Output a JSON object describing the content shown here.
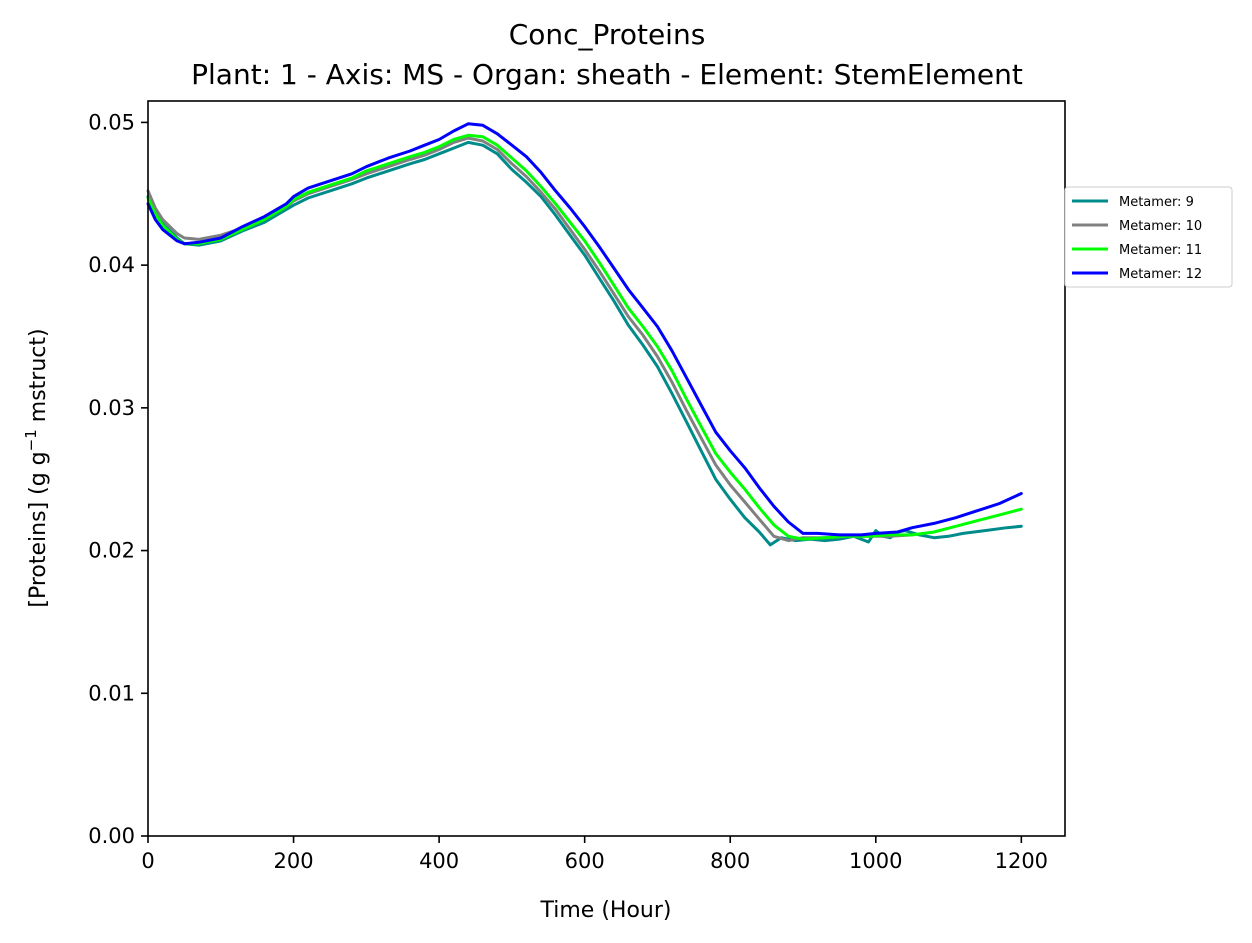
{
  "chart_data": {
    "type": "line",
    "title": "Conc_Proteins",
    "subtitle": "Plant: 1 - Axis: MS - Organ: sheath - Element: StemElement",
    "xlabel": "Time (Hour)",
    "ylabel_main": "[Proteins] (g g",
    "ylabel_sup": "−1",
    "ylabel_tail": " mstruct)",
    "xlim": [
      0,
      1260
    ],
    "ylim": [
      0,
      0.0515
    ],
    "xticks": [
      0,
      200,
      400,
      600,
      800,
      1000,
      1200
    ],
    "xtick_labels": [
      "0",
      "200",
      "400",
      "600",
      "800",
      "1000",
      "1200"
    ],
    "yticks": [
      0,
      0.01,
      0.02,
      0.03,
      0.04,
      0.05
    ],
    "ytick_labels": [
      "0.00",
      "0.01",
      "0.02",
      "0.03",
      "0.04",
      "0.05"
    ],
    "grid": false,
    "legend_position": "outside-right-top",
    "series": [
      {
        "name": "Metamer: 9",
        "color": "#008b8b",
        "points": [
          [
            0,
            0.0448
          ],
          [
            10,
            0.0437
          ],
          [
            20,
            0.0429
          ],
          [
            40,
            0.0419
          ],
          [
            50,
            0.0415
          ],
          [
            70,
            0.0414
          ],
          [
            100,
            0.0417
          ],
          [
            130,
            0.0424
          ],
          [
            160,
            0.043
          ],
          [
            190,
            0.0439
          ],
          [
            200,
            0.0442
          ],
          [
            220,
            0.0447
          ],
          [
            250,
            0.0452
          ],
          [
            280,
            0.0457
          ],
          [
            300,
            0.0461
          ],
          [
            330,
            0.0466
          ],
          [
            360,
            0.0471
          ],
          [
            380,
            0.0474
          ],
          [
            400,
            0.0478
          ],
          [
            420,
            0.0482
          ],
          [
            440,
            0.0486
          ],
          [
            460,
            0.0484
          ],
          [
            480,
            0.0478
          ],
          [
            500,
            0.0467
          ],
          [
            520,
            0.0458
          ],
          [
            540,
            0.0448
          ],
          [
            560,
            0.0435
          ],
          [
            580,
            0.0421
          ],
          [
            600,
            0.0407
          ],
          [
            620,
            0.0391
          ],
          [
            640,
            0.0375
          ],
          [
            660,
            0.0358
          ],
          [
            680,
            0.0344
          ],
          [
            700,
            0.0329
          ],
          [
            720,
            0.031
          ],
          [
            740,
            0.029
          ],
          [
            760,
            0.027
          ],
          [
            780,
            0.025
          ],
          [
            800,
            0.0236
          ],
          [
            820,
            0.0223
          ],
          [
            840,
            0.0213
          ],
          [
            855,
            0.0204
          ],
          [
            870,
            0.0209
          ],
          [
            890,
            0.0207
          ],
          [
            910,
            0.0208
          ],
          [
            930,
            0.0207
          ],
          [
            950,
            0.0208
          ],
          [
            970,
            0.021
          ],
          [
            990,
            0.0206
          ],
          [
            1000,
            0.0214
          ],
          [
            1010,
            0.021
          ],
          [
            1020,
            0.0209
          ],
          [
            1030,
            0.0213
          ],
          [
            1040,
            0.0214
          ],
          [
            1060,
            0.0211
          ],
          [
            1080,
            0.0209
          ],
          [
            1100,
            0.021
          ],
          [
            1120,
            0.0212
          ],
          [
            1150,
            0.0214
          ],
          [
            1180,
            0.0216
          ],
          [
            1200,
            0.0217
          ]
        ]
      },
      {
        "name": "Metamer: 10",
        "color": "#808080",
        "points": [
          [
            0,
            0.0452
          ],
          [
            10,
            0.044
          ],
          [
            20,
            0.0432
          ],
          [
            40,
            0.0422
          ],
          [
            50,
            0.0419
          ],
          [
            70,
            0.0418
          ],
          [
            100,
            0.0421
          ],
          [
            130,
            0.0426
          ],
          [
            160,
            0.0432
          ],
          [
            190,
            0.0441
          ],
          [
            200,
            0.0445
          ],
          [
            220,
            0.045
          ],
          [
            250,
            0.0455
          ],
          [
            280,
            0.046
          ],
          [
            300,
            0.0464
          ],
          [
            330,
            0.0469
          ],
          [
            360,
            0.0474
          ],
          [
            380,
            0.0477
          ],
          [
            400,
            0.0481
          ],
          [
            420,
            0.0486
          ],
          [
            440,
            0.0489
          ],
          [
            460,
            0.0487
          ],
          [
            480,
            0.0481
          ],
          [
            500,
            0.0471
          ],
          [
            520,
            0.0462
          ],
          [
            540,
            0.0451
          ],
          [
            560,
            0.0439
          ],
          [
            580,
            0.0425
          ],
          [
            600,
            0.0411
          ],
          [
            620,
            0.0396
          ],
          [
            640,
            0.038
          ],
          [
            660,
            0.0364
          ],
          [
            680,
            0.0351
          ],
          [
            700,
            0.0336
          ],
          [
            720,
            0.0318
          ],
          [
            740,
            0.0298
          ],
          [
            760,
            0.0279
          ],
          [
            780,
            0.026
          ],
          [
            800,
            0.0246
          ],
          [
            820,
            0.0234
          ],
          [
            840,
            0.0222
          ],
          [
            860,
            0.021
          ],
          [
            880,
            0.0207
          ],
          [
            900,
            0.0209
          ],
          [
            930,
            0.0209
          ],
          [
            960,
            0.021
          ],
          [
            990,
            0.021
          ],
          [
            1020,
            0.021
          ],
          [
            1050,
            0.0211
          ]
        ]
      },
      {
        "name": "Metamer: 11",
        "color": "#00ff00",
        "points": [
          [
            0,
            0.0447
          ],
          [
            10,
            0.0436
          ],
          [
            20,
            0.0428
          ],
          [
            40,
            0.0418
          ],
          [
            50,
            0.0415
          ],
          [
            70,
            0.0415
          ],
          [
            100,
            0.0418
          ],
          [
            130,
            0.0425
          ],
          [
            160,
            0.0432
          ],
          [
            190,
            0.0441
          ],
          [
            200,
            0.0446
          ],
          [
            220,
            0.0451
          ],
          [
            250,
            0.0456
          ],
          [
            280,
            0.0461
          ],
          [
            300,
            0.0466
          ],
          [
            330,
            0.0471
          ],
          [
            360,
            0.0476
          ],
          [
            380,
            0.0479
          ],
          [
            400,
            0.0483
          ],
          [
            420,
            0.0488
          ],
          [
            440,
            0.0491
          ],
          [
            460,
            0.049
          ],
          [
            480,
            0.0484
          ],
          [
            500,
            0.0475
          ],
          [
            520,
            0.0466
          ],
          [
            540,
            0.0455
          ],
          [
            560,
            0.0443
          ],
          [
            580,
            0.043
          ],
          [
            600,
            0.0417
          ],
          [
            620,
            0.0402
          ],
          [
            640,
            0.0386
          ],
          [
            660,
            0.037
          ],
          [
            680,
            0.0357
          ],
          [
            700,
            0.0343
          ],
          [
            720,
            0.0326
          ],
          [
            740,
            0.0306
          ],
          [
            760,
            0.0287
          ],
          [
            780,
            0.0268
          ],
          [
            800,
            0.0255
          ],
          [
            820,
            0.0243
          ],
          [
            840,
            0.023
          ],
          [
            860,
            0.0218
          ],
          [
            880,
            0.021
          ],
          [
            900,
            0.0208
          ],
          [
            930,
            0.0209
          ],
          [
            960,
            0.021
          ],
          [
            990,
            0.021
          ],
          [
            1020,
            0.0211
          ],
          [
            1050,
            0.0211
          ],
          [
            1080,
            0.0213
          ],
          [
            1110,
            0.0217
          ],
          [
            1140,
            0.0221
          ],
          [
            1170,
            0.0225
          ],
          [
            1200,
            0.0229
          ]
        ]
      },
      {
        "name": "Metamer: 12",
        "color": "#0000ff",
        "points": [
          [
            0,
            0.0443
          ],
          [
            10,
            0.0432
          ],
          [
            20,
            0.0425
          ],
          [
            40,
            0.0417
          ],
          [
            50,
            0.0415
          ],
          [
            70,
            0.0416
          ],
          [
            100,
            0.0419
          ],
          [
            130,
            0.0427
          ],
          [
            160,
            0.0434
          ],
          [
            190,
            0.0443
          ],
          [
            200,
            0.0448
          ],
          [
            220,
            0.0454
          ],
          [
            250,
            0.0459
          ],
          [
            280,
            0.0464
          ],
          [
            300,
            0.0469
          ],
          [
            330,
            0.0475
          ],
          [
            360,
            0.048
          ],
          [
            380,
            0.0484
          ],
          [
            400,
            0.0488
          ],
          [
            420,
            0.0494
          ],
          [
            440,
            0.0499
          ],
          [
            460,
            0.0498
          ],
          [
            480,
            0.0492
          ],
          [
            500,
            0.0484
          ],
          [
            520,
            0.0476
          ],
          [
            540,
            0.0465
          ],
          [
            560,
            0.0452
          ],
          [
            580,
            0.044
          ],
          [
            600,
            0.0427
          ],
          [
            620,
            0.0413
          ],
          [
            640,
            0.0398
          ],
          [
            660,
            0.0383
          ],
          [
            680,
            0.037
          ],
          [
            700,
            0.0357
          ],
          [
            720,
            0.034
          ],
          [
            740,
            0.0321
          ],
          [
            760,
            0.0302
          ],
          [
            780,
            0.0283
          ],
          [
            800,
            0.027
          ],
          [
            820,
            0.0258
          ],
          [
            840,
            0.0244
          ],
          [
            860,
            0.0231
          ],
          [
            880,
            0.022
          ],
          [
            900,
            0.0212
          ],
          [
            920,
            0.0212
          ],
          [
            950,
            0.0211
          ],
          [
            980,
            0.0211
          ],
          [
            1000,
            0.0212
          ],
          [
            1030,
            0.0213
          ],
          [
            1050,
            0.0216
          ],
          [
            1080,
            0.0219
          ],
          [
            1110,
            0.0223
          ],
          [
            1140,
            0.0228
          ],
          [
            1170,
            0.0233
          ],
          [
            1200,
            0.024
          ]
        ]
      }
    ]
  }
}
